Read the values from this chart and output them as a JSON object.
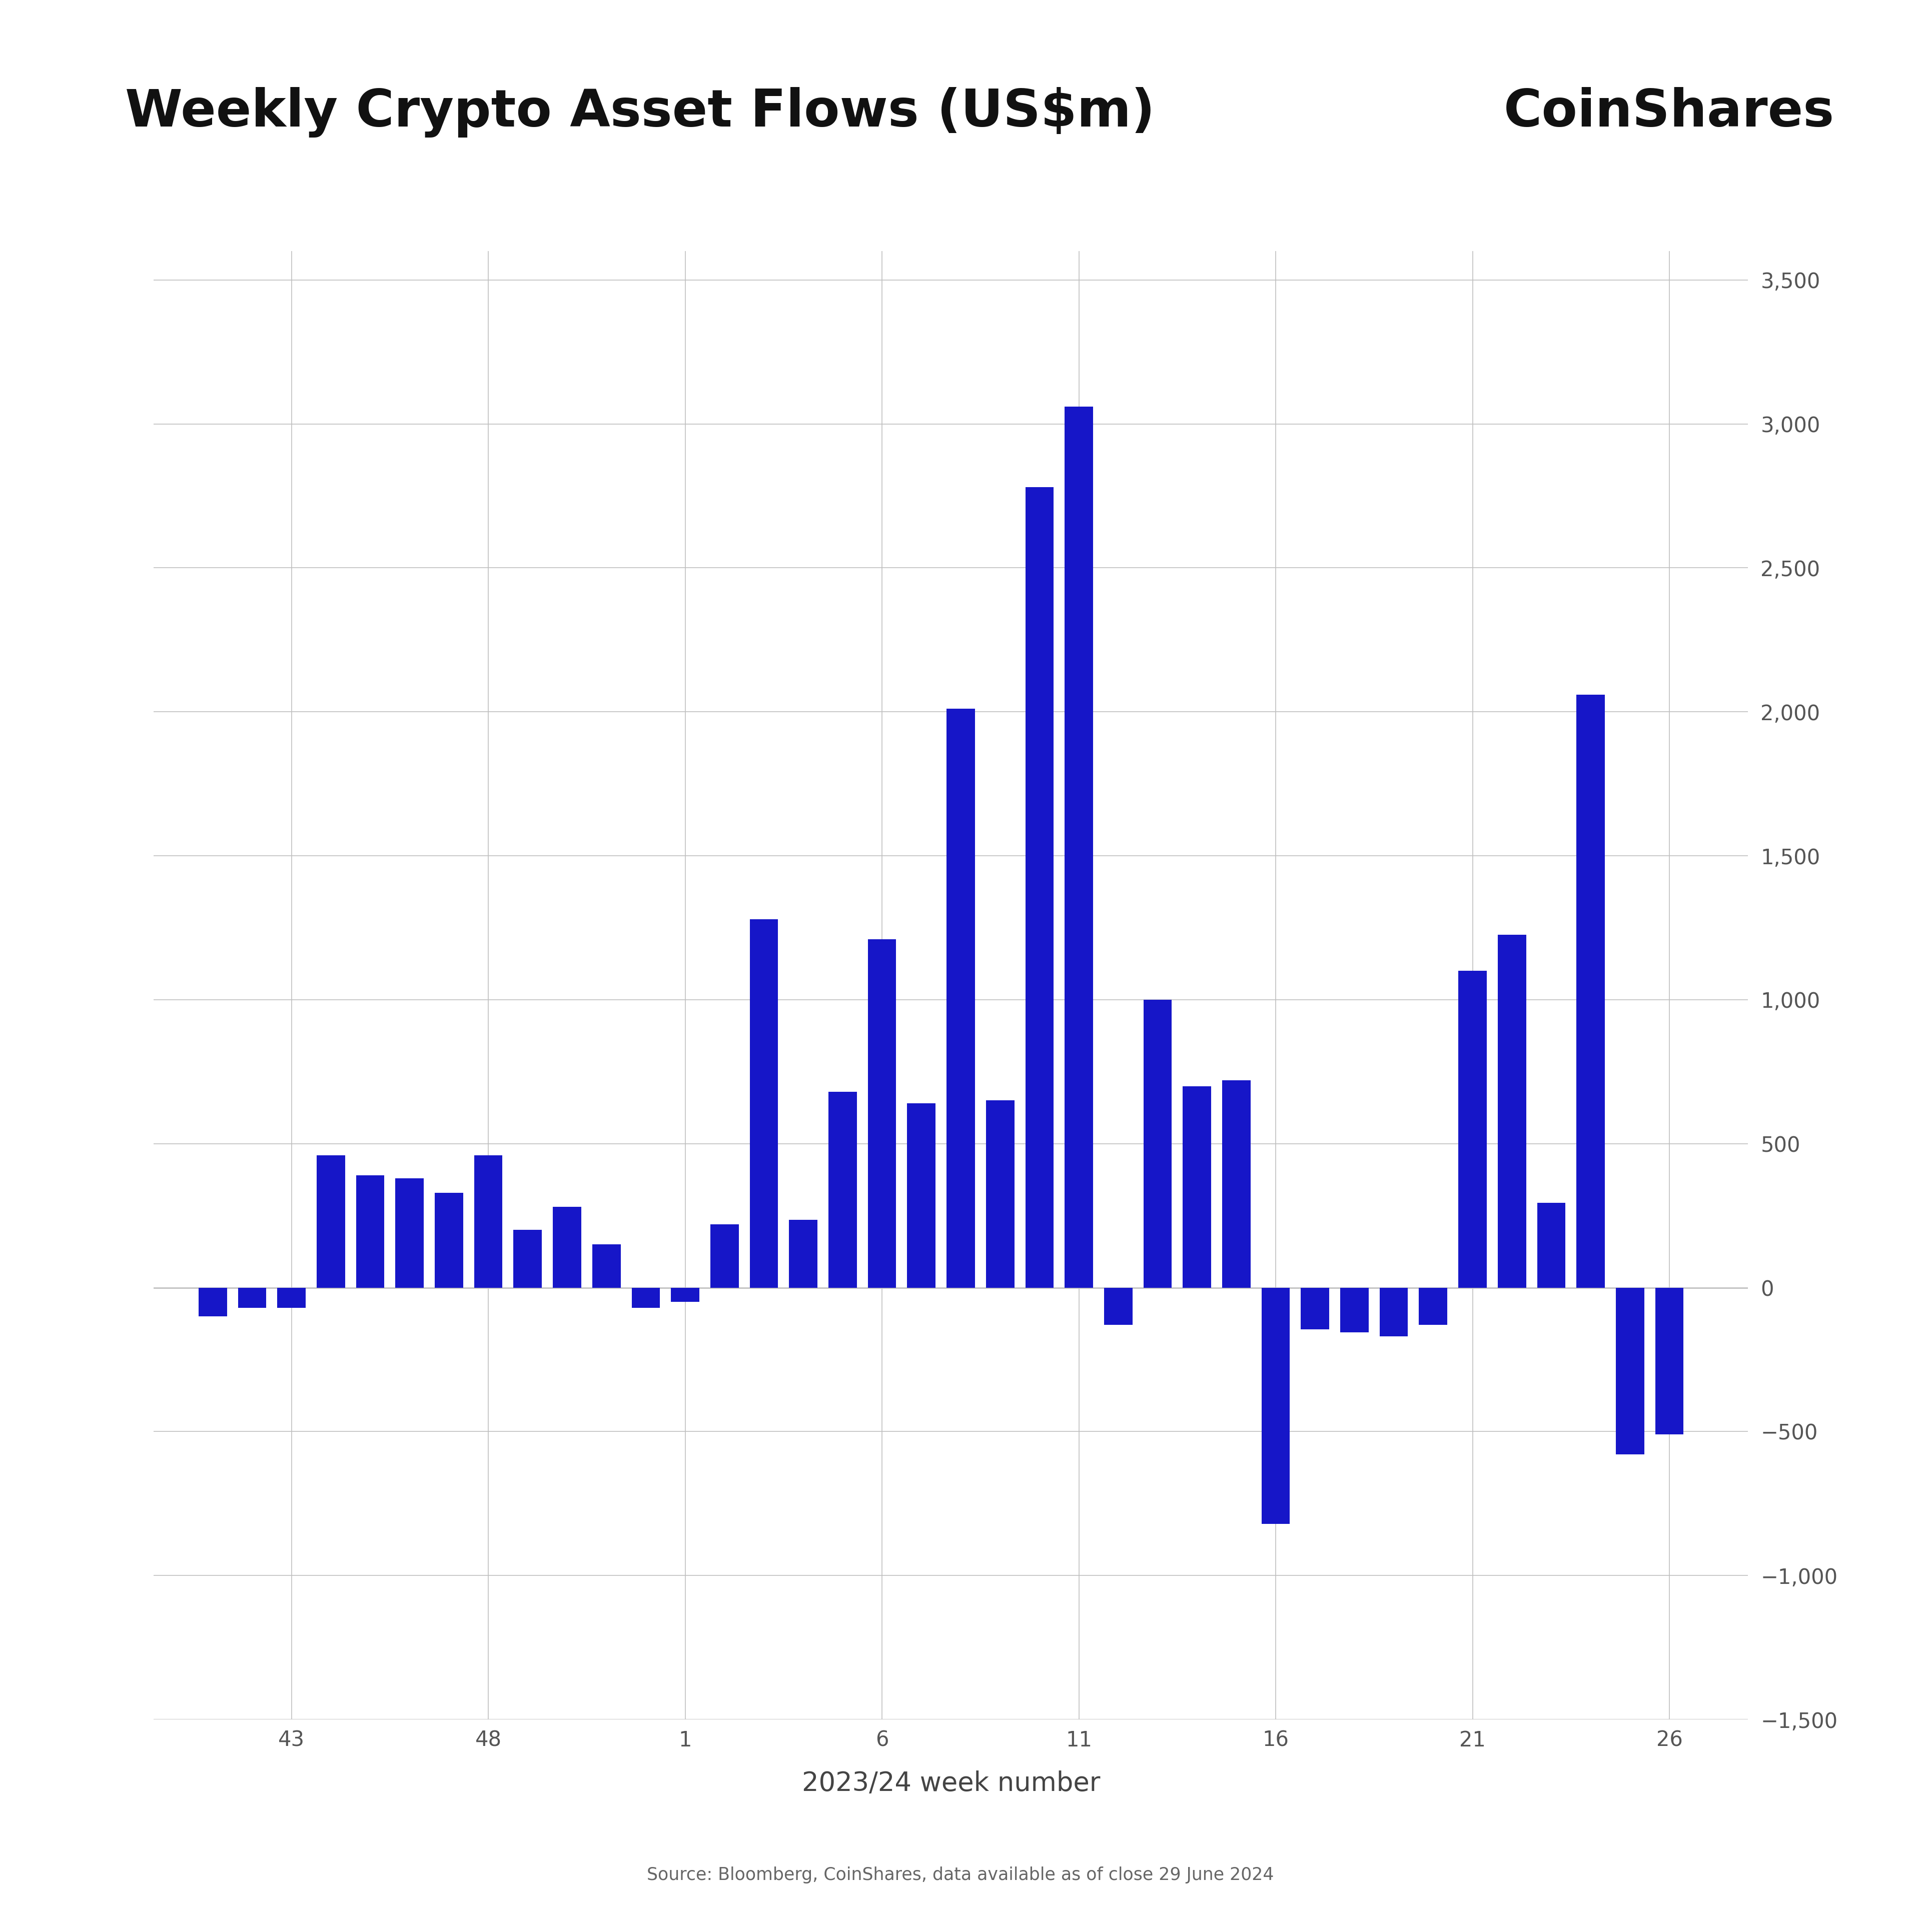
{
  "title": "Weekly Crypto Asset Flows (US$m)",
  "coinshares_label": "CoinShares",
  "xlabel": "2023/24 week number",
  "source_text": "Source: Bloomberg, CoinShares, data available as of close 29 June 2024",
  "bar_color": "#1616c8",
  "background_color": "#ffffff",
  "grid_color": "#c0c0c0",
  "ylim_bottom": -1500,
  "ylim_top": 3600,
  "yticks": [
    -1500,
    -1000,
    -500,
    0,
    500,
    1000,
    1500,
    2000,
    2500,
    3000,
    3500
  ],
  "xtick_labels": [
    "43",
    "48",
    "1",
    "6",
    "11",
    "16",
    "21",
    "26"
  ],
  "bar_positions": [
    41,
    42,
    43,
    44,
    45,
    46,
    47,
    48,
    49,
    50,
    51,
    52,
    53,
    54,
    55,
    56,
    57,
    58,
    59,
    60,
    61,
    62,
    63,
    64,
    65,
    66,
    67,
    68,
    69,
    70,
    71,
    72,
    73,
    74,
    75,
    76,
    77,
    78
  ],
  "bar_values": [
    -100,
    -70,
    -70,
    460,
    390,
    380,
    330,
    460,
    200,
    280,
    150,
    -70,
    -50,
    220,
    1280,
    235,
    680,
    1210,
    640,
    2010,
    650,
    2780,
    3060,
    -130,
    1000,
    700,
    720,
    -820,
    -145,
    -155,
    -170,
    -130,
    1100,
    1225,
    295,
    2060,
    -580,
    -510
  ],
  "xtick_positions": [
    43,
    48,
    53,
    58,
    63,
    68,
    73,
    78
  ],
  "vline_positions": [
    43,
    48,
    53,
    58,
    63,
    68,
    73,
    78
  ],
  "bar_width": 0.72,
  "xlim_left": 39.5,
  "xlim_right": 80.0
}
